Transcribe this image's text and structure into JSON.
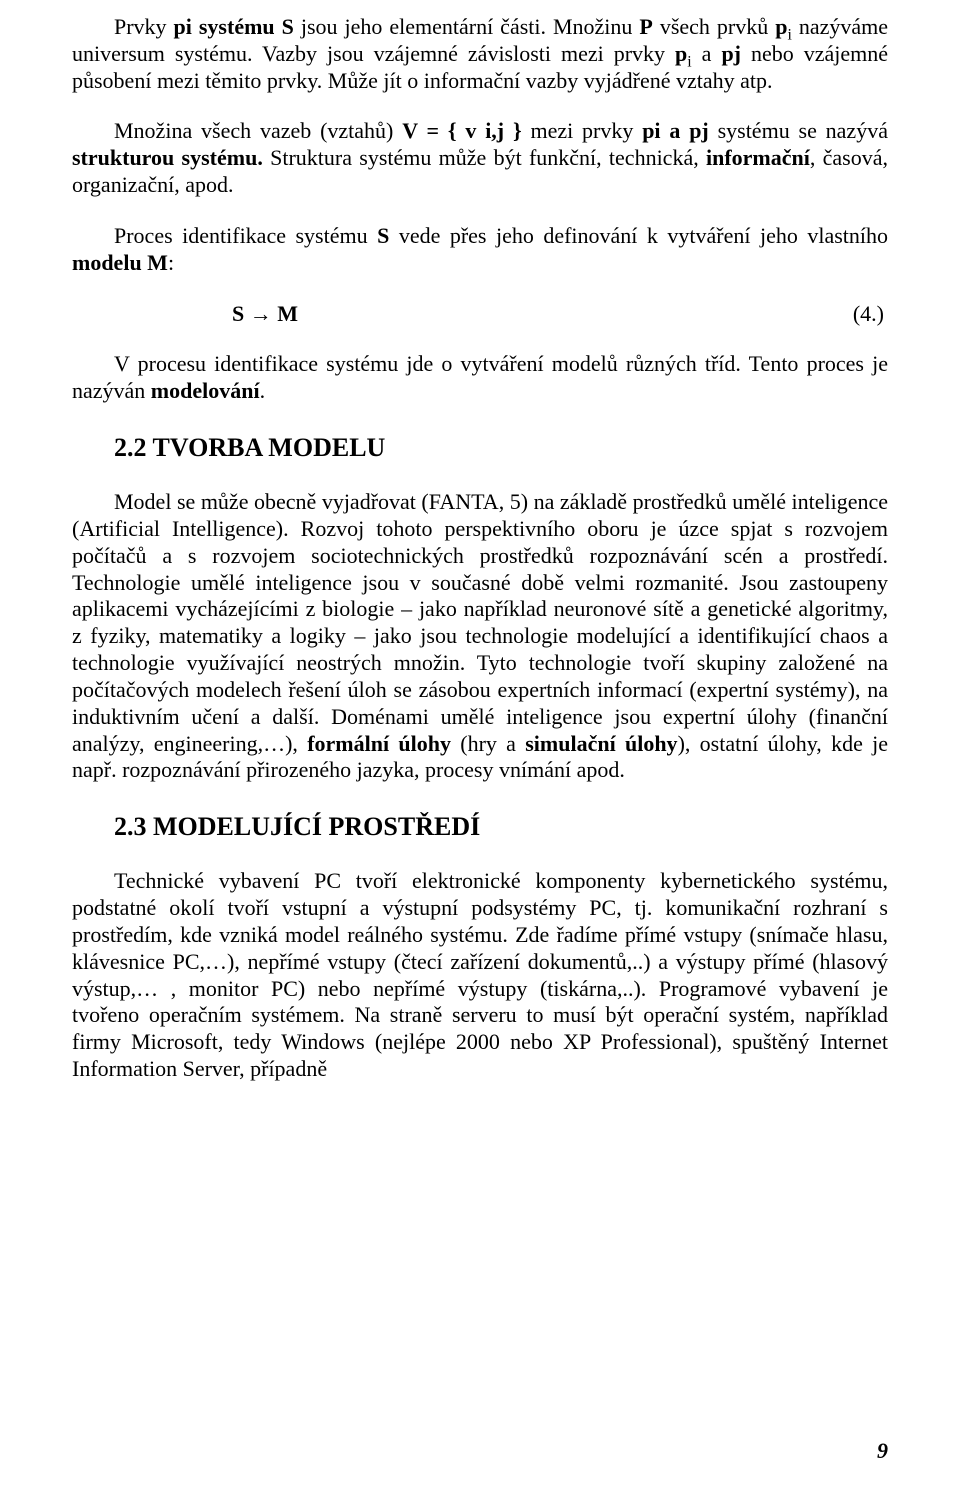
{
  "p1": {
    "a": "Prvky ",
    "b": "pi systému S",
    "c": " jsou jeho elementární části. Množinu ",
    "d": "P",
    "e": " všech prvků ",
    "f": "p",
    "g": "i",
    "h": " nazýváme universum systému. Vazby jsou vzájemné závislosti mezi prvky ",
    "i": "p",
    "j": "i",
    "k": " a ",
    "l": "pj",
    "m": " nebo vzájemné působení mezi těmito prvky. Může jít o informační vazby vyjádřené vztahy atp."
  },
  "p2": {
    "a": "Množina všech vazeb (vztahů) ",
    "b": "V = { v i,j }",
    "c": " mezi prvky ",
    "d": "pi a pj",
    "e": " systému se nazývá ",
    "f": "strukturou systému.",
    "g": " Struktura systému může být funkční, technická, ",
    "h": "informační",
    "i": ", časová, organizační, apod."
  },
  "p3": {
    "a": "Proces identifikace systému ",
    "b": "S",
    "c": " vede přes jeho definování k vytváření jeho vlastního ",
    "d": "modelu  M",
    "e": ":"
  },
  "eq": {
    "lhs": "S → M",
    "num": "(4.)"
  },
  "p4": {
    "a": "V procesu identifikace systému jde o vytváření modelů různých tříd. Tento proces je nazýván ",
    "b": "modelování",
    "c": "."
  },
  "h1": "2.2 TVORBA MODELU",
  "p5": {
    "a": "Model se může obecně vyjadřovat (FANTA, 5) na základě prostředků umělé inteligence (Artificial Intelligence). Rozvoj tohoto perspektivního oboru je úzce spjat s rozvojem počítačů a s rozvojem sociotechnických prostředků rozpoznávání scén a prostředí. Technologie umělé inteligence jsou v současné době velmi rozmanité. Jsou zastoupeny aplikacemi vycházejícími z biologie – jako například neuronové sítě a genetické algoritmy, z fyziky, matematiky a logiky – jako jsou technologie modelující a identifikující chaos a technologie využívající neostrých množin. Tyto technologie tvoří skupiny založené na počítačových modelech řešení úloh se zásobou expertních informací (expertní systémy), na induktivním učení a další. Doménami umělé inteligence jsou expertní úlohy (finanční analýzy, engineering,…), ",
    "b": "formální úlohy",
    "c": " (hry a ",
    "d": "simulační úlohy",
    "e": "), ostatní úlohy, kde je např. rozpoznávání přirozeného jazyka, procesy vnímání apod."
  },
  "h2": "2.3 MODELUJÍCÍ PROSTŘEDÍ",
  "p6": "Technické vybavení PC tvoří elektronické komponenty kybernetického systému, podstatné okolí tvoří vstupní a výstupní podsystémy PC, tj. komunikační rozhraní s prostředím, kde vzniká model reálného systému. Zde řadíme přímé vstupy (snímače hlasu, klávesnice PC,…), nepřímé vstupy (čtecí zařízení dokumentů,..) a výstupy přímé (hlasový výstup,… , monitor PC) nebo nepřímé výstupy (tiskárna,..). Programové vybavení je tvořeno operačním systémem. Na straně serveru to musí být operační systém, například firmy Microsoft, tedy Windows (nejlépe 2000 nebo XP Professional), spuštěný Internet Information Server, případně",
  "pagenum": "9"
}
